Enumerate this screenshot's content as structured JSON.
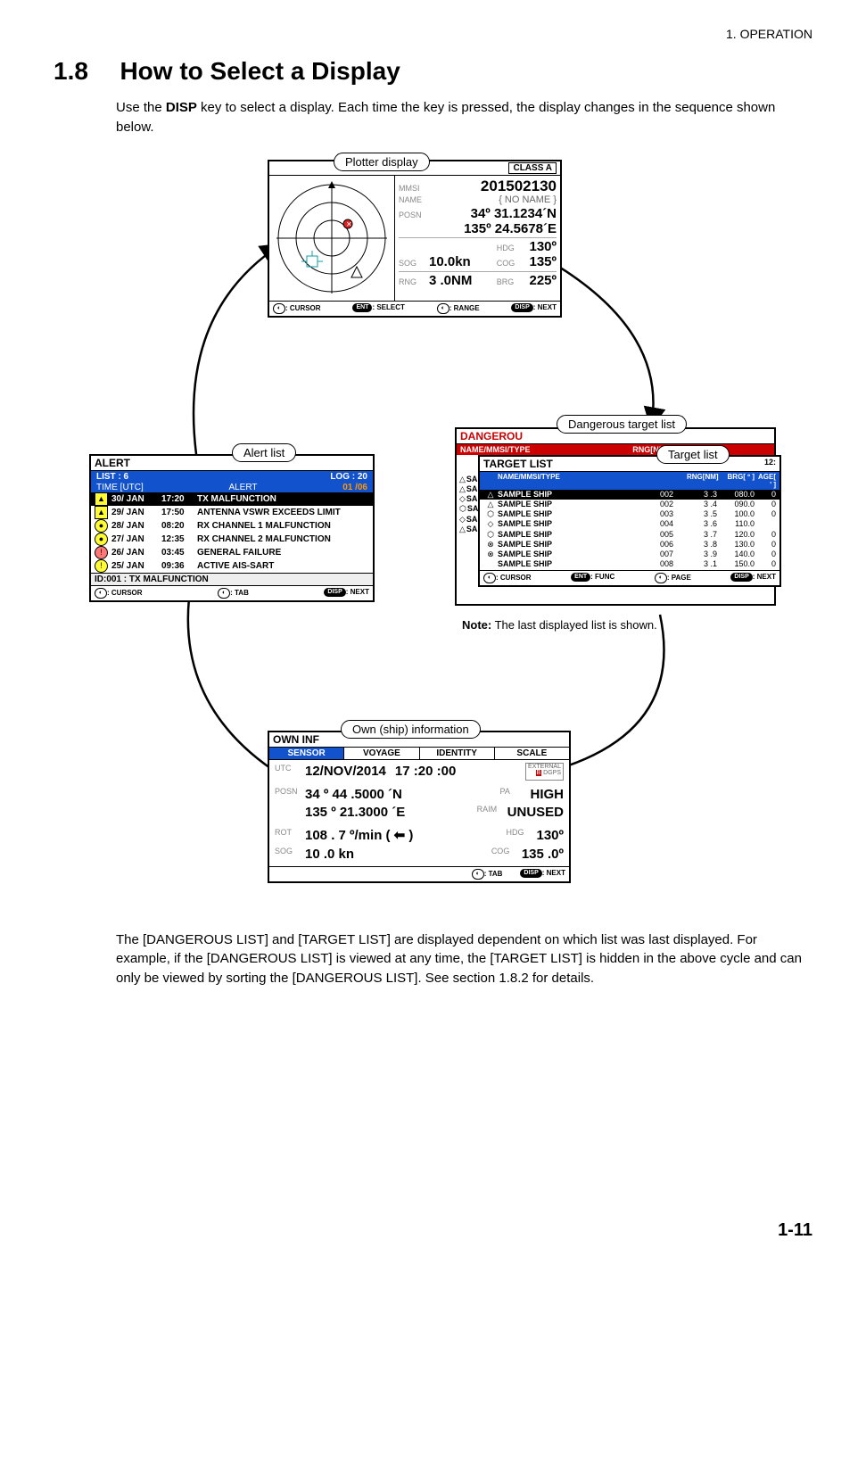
{
  "header": {
    "chapter": "1.  OPERATION",
    "section_num": "1.8",
    "section_title": "How to Select a Display",
    "intro_before": "Use the ",
    "intro_key": "DISP",
    "intro_after": " key to select a display. Each time the key is pressed, the display changes in the sequence shown below.",
    "page_num": "1-11"
  },
  "plotter": {
    "callout": "Plotter display",
    "class": "CLASS A",
    "mmsi_lbl": "MMSI",
    "mmsi": "201502130",
    "name_lbl": "NAME",
    "name": "{ NO  NAME }",
    "posn_lbl": "POSN",
    "posn1": "34º 31.1234´N",
    "posn2": "135º 24.5678´E",
    "hdg_lbl": "HDG",
    "hdg": "130º",
    "sog_lbl": "SOG",
    "sog": "10.0kn",
    "cog_lbl": "COG",
    "cog": "135º",
    "rng_lbl": "RNG",
    "rng": "3 .0NM",
    "brg_lbl": "BRG",
    "brg": "225º",
    "footer": {
      "cursor": ": CURSOR",
      "select": ": SELECT",
      "range": ": RANGE",
      "next": ": NEXT",
      "ent": "ENT",
      "disp": "DISP"
    }
  },
  "alert": {
    "callout": "Alert list",
    "title": "ALERT",
    "list": "LIST : 6",
    "log": "LOG : 20",
    "col_time": "TIME [UTC]",
    "col_alert": "ALERT",
    "count": "01 /06",
    "rows": [
      {
        "ic": "▲",
        "cls": "ic-tri-y",
        "date": "30/ JAN",
        "time": "17:20",
        "msg": "TX MALFUNCTION",
        "hl": true
      },
      {
        "ic": "▲",
        "cls": "ic-tri-y",
        "date": "29/ JAN",
        "time": "17:50",
        "msg": "ANTENNA VSWR EXCEEDS LIMIT"
      },
      {
        "ic": "●",
        "cls": "ic-circ-y",
        "date": "28/ JAN",
        "time": "08:20",
        "msg": "RX CHANNEL 1 MALFUNCTION"
      },
      {
        "ic": "●",
        "cls": "ic-circ-y",
        "date": "27/ JAN",
        "time": "12:35",
        "msg": "RX CHANNEL 2 MALFUNCTION"
      },
      {
        "ic": "!",
        "cls": "ic-circ-r",
        "date": "26/ JAN",
        "time": "03:45",
        "msg": "GENERAL FAILURE"
      },
      {
        "ic": "!",
        "cls": "ic-circ-y",
        "date": "25/ JAN",
        "time": "09:36",
        "msg": "ACTIVE AIS-SART"
      }
    ],
    "idline": "ID:001    :   TX MALFUNCTION",
    "footer": {
      "cursor": ": CURSOR",
      "tab": ": TAB",
      "next": ": NEXT",
      "disp": "DISP"
    }
  },
  "target": {
    "dangerous_callout": "Dangerous target list",
    "target_callout": "Target list",
    "dangerous_title": "DANGEROU",
    "red_name": "NAME/MMSI/TYPE",
    "red_rng": "RNG[NM]",
    "tl_title": "TARGET LIST",
    "tl_right": "12:",
    "head": {
      "name": "NAME/MMSI/TYPE",
      "rng": "RNG[NM]",
      "brg": "BRG[ º ]",
      "age": "AGE[ ' ]"
    },
    "left_syms": [
      "△",
      "△",
      "◇",
      "⬡",
      "◇",
      "△"
    ],
    "inner_syms": [
      "△",
      "△",
      "⬡",
      "◇",
      "⬡",
      "⊗",
      "⊗"
    ],
    "rows": [
      {
        "hl": true,
        "name": "SAMPLE SHIP",
        "num": "002",
        "rng": "3 .3",
        "brg": "080.0",
        "age": "0"
      },
      {
        "name": "SAMPLE SHIP",
        "num": "002",
        "rng": "3 .4",
        "brg": "090.0",
        "age": "0"
      },
      {
        "name": "SAMPLE SHIP",
        "num": "003",
        "rng": "3 .5",
        "brg": "100.0",
        "age": "0"
      },
      {
        "name": "SAMPLE SHIP",
        "num": "004",
        "rng": "3 .6",
        "brg": "110.0",
        "age": ""
      },
      {
        "name": "SAMPLE SHIP",
        "num": "005",
        "rng": "3 .7",
        "brg": "120.0",
        "age": "0"
      },
      {
        "name": "SAMPLE SHIP",
        "num": "006",
        "rng": "3 .8",
        "brg": "130.0",
        "age": "0"
      },
      {
        "name": "SAMPLE SHIP",
        "num": "007",
        "rng": "3 .9",
        "brg": "140.0",
        "age": "0"
      },
      {
        "name": "SAMPLE SHIP",
        "num": "008",
        "rng": "3 .1",
        "brg": "150.0",
        "age": "0"
      }
    ],
    "footer": {
      "cursor": ": CURSOR",
      "func": ": FUNC",
      "page": ": PAGE",
      "next": ": NEXT",
      "ent": "ENT",
      "disp": "DISP"
    },
    "note_b": "Note:",
    "note": " The last displayed list is shown."
  },
  "own": {
    "callout": "Own (ship) information",
    "title": "OWN INF",
    "tabs": [
      "SENSOR",
      "VOYAGE",
      "IDENTITY",
      "SCALE"
    ],
    "utc_lbl": "UTC",
    "utc_date": "12/NOV/2014",
    "utc_time": "17 :20 :00",
    "badge1": "EXTERNAL",
    "badge2": "DGPS",
    "posn_lbl": "POSN",
    "posn1": "34 º 44 .5000 ´N",
    "posn2": "135 º 21.3000 ´E",
    "pa_lbl": "PA",
    "pa": "HIGH",
    "raim_lbl": "RAIM",
    "raim": "UNUSED",
    "rot_lbl": "ROT",
    "rot": "108 . 7 º/min ( ⬅ )",
    "hdg_lbl": "HDG",
    "hdg": "130º",
    "sog_lbl": "SOG",
    "sog": "10 .0 kn",
    "cog_lbl": "COG",
    "cog": "135 .0º",
    "footer": {
      "tab": ": TAB",
      "next": ": NEXT",
      "disp": "DISP"
    }
  },
  "para2": "The [DANGEROUS LIST] and [TARGET LIST] are displayed dependent on which list was last displayed. For example, if the [DANGEROUS LIST] is viewed at any time, the [TARGET LIST] is hidden in the above cycle and can only be viewed by sorting the [DANGEROUS LIST]. See section 1.8.2 for details.",
  "colors": {
    "blue": "#1252cc",
    "red": "#c00000",
    "orange": "#f58a00"
  }
}
